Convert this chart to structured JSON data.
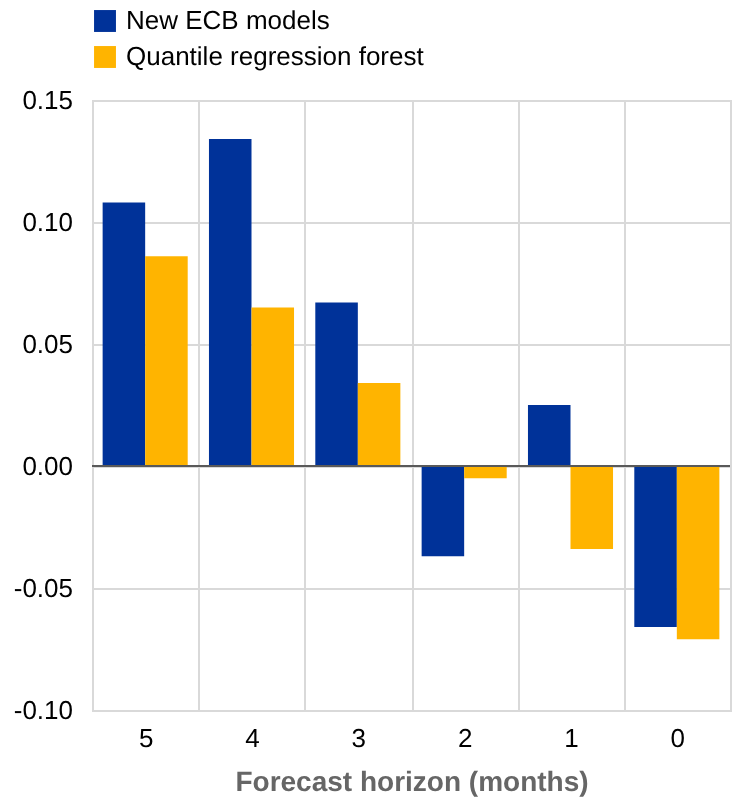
{
  "chart_data": {
    "type": "bar",
    "xlabel": "Forecast horizon (months)",
    "categories": [
      "5",
      "4",
      "3",
      "2",
      "1",
      "0"
    ],
    "series": [
      {
        "name": "New ECB models",
        "color": "#003299",
        "values": [
          0.108,
          0.134,
          0.067,
          -0.037,
          0.025,
          -0.066
        ]
      },
      {
        "name": "Quantile regression forest",
        "color": "#ffb400",
        "values": [
          0.086,
          0.065,
          0.034,
          -0.005,
          -0.034,
          -0.071
        ]
      }
    ],
    "ylim": [
      -0.1,
      0.15
    ],
    "yticks": [
      {
        "value": -0.1,
        "label": "-0.10"
      },
      {
        "value": -0.05,
        "label": "-0.05"
      },
      {
        "value": 0,
        "label": "0.00"
      },
      {
        "value": 0.05,
        "label": "0.05"
      },
      {
        "value": 0.1,
        "label": "0.10"
      },
      {
        "value": 0.15,
        "label": "0.15"
      }
    ],
    "grid": true,
    "legend": "top left"
  }
}
